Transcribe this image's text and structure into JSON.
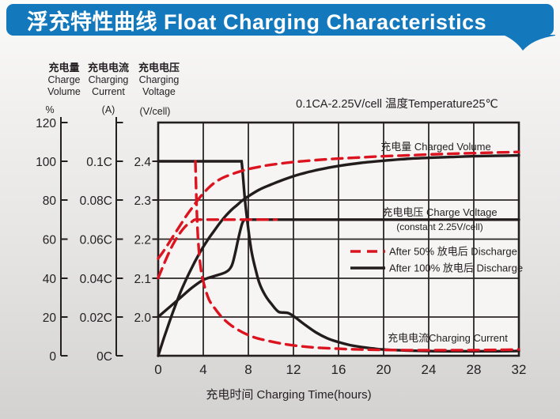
{
  "title": "浮充特性曲线 Float Charging Characteristics",
  "colors": {
    "banner": "#1478bd",
    "red": "#dc1420",
    "black": "#221c1c",
    "grid": "#2d2626"
  },
  "chart_data": {
    "type": "line",
    "title": "浮充特性曲线 Float Charging Characteristics",
    "annotation": "0.1CA-2.25V/cell  温度Temperature25℃",
    "grid": true,
    "x_axis": {
      "title": "充电时间 Charging Time(hours)",
      "range": [
        0,
        32
      ],
      "ticks": [
        "0",
        "4",
        "8",
        "12",
        "16",
        "20",
        "24",
        "28",
        "32"
      ]
    },
    "y_axes": [
      {
        "id": "volume",
        "label_cn": "充电量",
        "label_en1": "Charge",
        "label_en2": "Volume",
        "unit": "%",
        "range": [
          0,
          120
        ],
        "ticks": [
          "120",
          "100",
          "80",
          "60",
          "40",
          "20",
          "0"
        ]
      },
      {
        "id": "current",
        "label_cn": "充电电流",
        "label_en1": "Charging",
        "label_en2": "Current",
        "unit": "(A)",
        "range": [
          0,
          0.12
        ],
        "ticks": [
          "0.1C",
          "0.08C",
          "0.06C",
          "0.04C",
          "0.02C",
          "0C"
        ]
      },
      {
        "id": "voltage",
        "label_cn": "充电电压",
        "label_en1": "Charging",
        "label_en2": "Voltage",
        "unit": "(V/cell)",
        "range": [
          1.9,
          2.5
        ],
        "ticks": [
          "2.4",
          "2.3",
          "2.2",
          "2.1",
          "2.0"
        ]
      }
    ],
    "curve_labels": {
      "volume": "充电量 Charged Volume",
      "voltage": "充电电压 Charge Voltage",
      "voltage_sub": "(constant 2.25V/cell)",
      "current": "充电电流Charging Current"
    },
    "legend": [
      {
        "label": "After 50%  放电后 Discharge",
        "style": "dashed",
        "color": "#dc1420"
      },
      {
        "label": "After 100%  放电后 Discharge",
        "style": "solid",
        "color": "#221c1c"
      }
    ],
    "series": [
      {
        "name": "charged-volume-after-100",
        "axis": "volume",
        "style": "solid",
        "color": "#221c1c",
        "points": [
          [
            0,
            0
          ],
          [
            0.5,
            9
          ],
          [
            1,
            17.5
          ],
          [
            1.5,
            25.5
          ],
          [
            2,
            33
          ],
          [
            2.5,
            39.5
          ],
          [
            3,
            45.5
          ],
          [
            3.5,
            51
          ],
          [
            4,
            56
          ],
          [
            4.5,
            60.5
          ],
          [
            5,
            64.5
          ],
          [
            5.5,
            68.5
          ],
          [
            6,
            72
          ],
          [
            6.5,
            75
          ],
          [
            7,
            77.5
          ],
          [
            7.5,
            80
          ],
          [
            8,
            82
          ],
          [
            9,
            85.5
          ],
          [
            10,
            88
          ],
          [
            11,
            90.3
          ],
          [
            12,
            92.3
          ],
          [
            13,
            94
          ],
          [
            14,
            95.4
          ],
          [
            15,
            96.6
          ],
          [
            16,
            97.6
          ],
          [
            18,
            99.2
          ],
          [
            20,
            100.3
          ],
          [
            22,
            101.2
          ],
          [
            24,
            101.8
          ],
          [
            26,
            102.2
          ],
          [
            28,
            102.6
          ],
          [
            30,
            102.8
          ],
          [
            32,
            103
          ]
        ]
      },
      {
        "name": "charge-voltage-after-100",
        "axis": "voltage",
        "style": "solid",
        "color": "#221c1c",
        "points": [
          [
            0,
            2.0
          ],
          [
            1,
            2.025
          ],
          [
            2,
            2.05
          ],
          [
            3,
            2.075
          ],
          [
            4,
            2.095
          ],
          [
            5,
            2.105
          ],
          [
            6,
            2.115
          ],
          [
            6.5,
            2.13
          ],
          [
            6.8,
            2.16
          ],
          [
            7.1,
            2.2
          ],
          [
            7.4,
            2.235
          ],
          [
            7.6,
            2.248
          ],
          [
            7.9,
            2.25
          ],
          [
            9,
            2.25
          ],
          [
            12,
            2.25
          ],
          [
            16,
            2.25
          ],
          [
            20,
            2.25
          ],
          [
            24,
            2.25
          ],
          [
            28,
            2.25
          ],
          [
            32,
            2.25
          ]
        ]
      },
      {
        "name": "charging-current-after-100",
        "axis": "current",
        "style": "solid",
        "color": "#221c1c",
        "points": [
          [
            0,
            0.1
          ],
          [
            3,
            0.1
          ],
          [
            6,
            0.1
          ],
          [
            7.2,
            0.1
          ],
          [
            7.4,
            0.1
          ],
          [
            7.7,
            0.08
          ],
          [
            8,
            0.065
          ],
          [
            8.3,
            0.053
          ],
          [
            8.7,
            0.043
          ],
          [
            9,
            0.037
          ],
          [
            9.5,
            0.031
          ],
          [
            10,
            0.027
          ],
          [
            10.7,
            0.0225
          ],
          [
            11.5,
            0.022
          ],
          [
            12.1,
            0.02
          ],
          [
            13,
            0.016
          ],
          [
            14,
            0.012
          ],
          [
            15,
            0.009
          ],
          [
            16,
            0.007
          ],
          [
            17,
            0.0055
          ],
          [
            18,
            0.0045
          ],
          [
            19,
            0.0038
          ],
          [
            20,
            0.0032
          ],
          [
            22,
            0.0027
          ],
          [
            24,
            0.0024
          ],
          [
            26,
            0.0023
          ],
          [
            28,
            0.0023
          ],
          [
            30,
            0.0023
          ],
          [
            32,
            0.0025
          ]
        ]
      },
      {
        "name": "charged-volume-after-50",
        "axis": "volume",
        "style": "dashed",
        "color": "#dc1420",
        "points": [
          [
            0,
            50
          ],
          [
            0.5,
            54
          ],
          [
            1,
            58.5
          ],
          [
            1.5,
            63
          ],
          [
            2,
            67.5
          ],
          [
            2.5,
            72
          ],
          [
            3,
            76
          ],
          [
            3.5,
            80
          ],
          [
            4,
            83.5
          ],
          [
            4.5,
            86.5
          ],
          [
            5,
            89
          ],
          [
            5.5,
            90.8
          ],
          [
            6,
            92.2
          ],
          [
            7,
            94.3
          ],
          [
            8,
            96
          ],
          [
            9,
            97.2
          ],
          [
            10,
            98.2
          ],
          [
            12,
            99.6
          ],
          [
            14,
            100.6
          ],
          [
            16,
            101.4
          ],
          [
            18,
            102
          ],
          [
            20,
            102.6
          ],
          [
            22,
            103
          ],
          [
            24,
            103.5
          ],
          [
            26,
            103.9
          ],
          [
            28,
            104.2
          ],
          [
            30,
            104.5
          ],
          [
            32,
            104.8
          ]
        ]
      },
      {
        "name": "charge-voltage-after-50",
        "axis": "voltage",
        "style": "dashed",
        "color": "#dc1420",
        "points": [
          [
            0,
            2.1
          ],
          [
            0.5,
            2.135
          ],
          [
            1,
            2.168
          ],
          [
            1.5,
            2.196
          ],
          [
            2,
            2.218
          ],
          [
            2.5,
            2.235
          ],
          [
            3,
            2.245
          ],
          [
            3.3,
            2.25
          ],
          [
            4.2,
            2.25
          ],
          [
            5.5,
            2.25
          ],
          [
            7,
            2.25
          ],
          [
            8.5,
            2.25
          ],
          [
            10.5,
            2.25
          ]
        ]
      },
      {
        "name": "charging-current-after-50",
        "axis": "current",
        "style": "dashed",
        "color": "#dc1420",
        "points": [
          [
            3.3,
            0.1
          ],
          [
            3.45,
            0.07
          ],
          [
            3.6,
            0.055
          ],
          [
            3.8,
            0.044
          ],
          [
            4.1,
            0.036
          ],
          [
            4.5,
            0.029
          ],
          [
            5,
            0.0245
          ],
          [
            5.7,
            0.0195
          ],
          [
            6.5,
            0.0155
          ],
          [
            7.5,
            0.012
          ],
          [
            8.5,
            0.0095
          ],
          [
            9.5,
            0.008
          ],
          [
            11,
            0.0062
          ],
          [
            12.5,
            0.005
          ],
          [
            14,
            0.0042
          ],
          [
            16,
            0.0036
          ],
          [
            18,
            0.0032
          ],
          [
            20,
            0.003
          ],
          [
            22,
            0.0029
          ],
          [
            24,
            0.0029
          ],
          [
            26,
            0.0029
          ],
          [
            28,
            0.0029
          ],
          [
            30,
            0.003
          ],
          [
            32,
            0.0032
          ]
        ]
      }
    ]
  }
}
